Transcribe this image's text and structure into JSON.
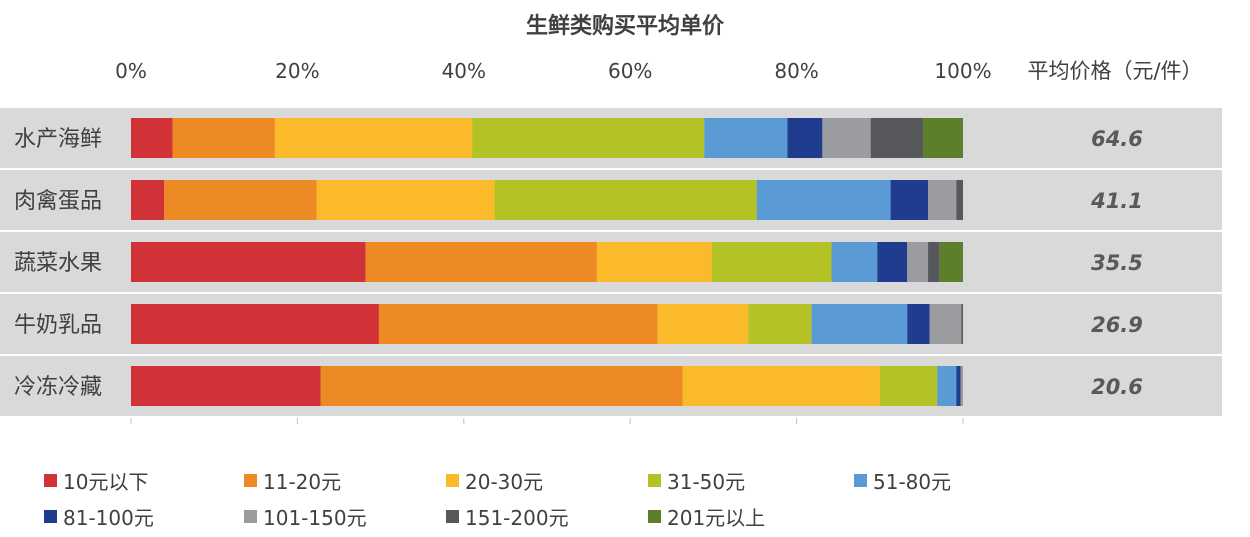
{
  "chart_data": {
    "type": "bar",
    "orientation": "horizontal",
    "stacked": "percent",
    "title": "生鲜类购买平均单价",
    "xlabel": "",
    "ylabel": "",
    "xlim": [
      0,
      100
    ],
    "x_ticks": [
      "0%",
      "20%",
      "40%",
      "60%",
      "80%",
      "100%"
    ],
    "grid": false,
    "legend_position": "bottom",
    "right_column_header": "平均价格（元/件）",
    "categories": [
      "水产海鲜",
      "肉禽蛋品",
      "蔬菜水果",
      "牛奶乳品",
      "冷冻冷藏"
    ],
    "average_prices": [
      "64.6",
      "41.1",
      "35.5",
      "26.9",
      "20.6"
    ],
    "series": [
      {
        "name": "10元以下",
        "color": "#D03237",
        "values": [
          5.0,
          4.0,
          28.2,
          29.8,
          22.8
        ]
      },
      {
        "name": "11-20元",
        "color": "#EE8A26",
        "values": [
          12.3,
          18.3,
          27.8,
          33.5,
          43.5
        ]
      },
      {
        "name": "20-30元",
        "color": "#FBBA29",
        "values": [
          23.7,
          21.4,
          13.8,
          10.9,
          23.7
        ]
      },
      {
        "name": "31-50元",
        "color": "#B4C226",
        "values": [
          27.9,
          31.5,
          14.4,
          7.6,
          6.9
        ]
      },
      {
        "name": "51-80元",
        "color": "#5B9BD5",
        "values": [
          10.0,
          16.1,
          5.5,
          11.5,
          2.3
        ]
      },
      {
        "name": "81-100元",
        "color": "#1F3C8E",
        "values": [
          4.2,
          4.5,
          3.6,
          2.7,
          0.5
        ]
      },
      {
        "name": "101-150元",
        "color": "#9B9C9F",
        "values": [
          5.8,
          3.4,
          2.5,
          3.8,
          0.3
        ]
      },
      {
        "name": "151-200元",
        "color": "#57585B",
        "values": [
          6.3,
          0.8,
          1.4,
          0.2,
          0.0
        ]
      },
      {
        "name": "201元以上",
        "color": "#5D7F2B",
        "values": [
          4.8,
          0.0,
          2.8,
          0.0,
          0.0
        ]
      }
    ]
  }
}
